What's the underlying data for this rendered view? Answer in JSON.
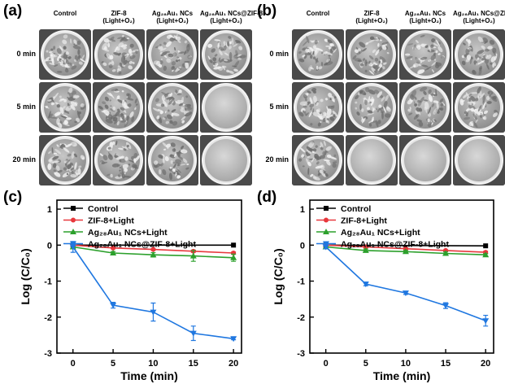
{
  "panels": {
    "a": {
      "letter": "(a)",
      "columns": [
        {
          "line1": "Control",
          "line2": ""
        },
        {
          "line1": "ZIF-8",
          "line2": "(Light+O₂)"
        },
        {
          "line1": "Ag₂₈Au₁ NCs",
          "line2": "(Light+O₂)"
        },
        {
          "line1": "Ag₂₈Au₁ NCs@ZIF-8",
          "line2": "(Light+O₂)"
        }
      ],
      "rows": [
        "0 min",
        "5 min",
        "20 min"
      ],
      "clear_plates": [
        [
          1,
          3
        ],
        [
          2,
          3
        ]
      ]
    },
    "b": {
      "letter": "(b)",
      "columns": [
        {
          "line1": "Control",
          "line2": ""
        },
        {
          "line1": "ZIF-8",
          "line2": "(Light+O₂)"
        },
        {
          "line1": "Ag₂₈Au₁ NCs",
          "line2": "(Light+O₂)"
        },
        {
          "line1": "Ag₂₈Au₁ NCs@ZI",
          "line2": "(Light+O₂)"
        }
      ],
      "rows": [
        "0 min",
        "5 min",
        "20 min"
      ],
      "clear_plates": [
        [
          2,
          1
        ],
        [
          2,
          2
        ],
        [
          2,
          3
        ]
      ]
    }
  },
  "chart_data": [
    {
      "panel": "(c)",
      "type": "line",
      "xlabel": "Time (min)",
      "ylabel": "Log (C/C₀)",
      "xlim": [
        -2,
        21
      ],
      "ylim": [
        -3,
        1.25
      ],
      "xticks": [
        0,
        5,
        10,
        15,
        20
      ],
      "yticks": [
        1,
        0,
        -1,
        -2,
        -3
      ],
      "legend_placement": "top-left",
      "series": [
        {
          "name": "Control",
          "color": "#000000",
          "marker": "square",
          "x": [
            0,
            20
          ],
          "y": [
            0,
            0
          ],
          "err": [
            0,
            0
          ]
        },
        {
          "name": "ZIF-8+Light",
          "color": "#e8383d",
          "marker": "circle",
          "x": [
            0,
            5,
            10,
            15,
            20
          ],
          "y": [
            0,
            -0.08,
            -0.12,
            -0.17,
            -0.22
          ],
          "err": [
            0.02,
            0.02,
            0.02,
            0.03,
            0.03
          ]
        },
        {
          "name": "Ag₂₈Au₁ NCs+Light",
          "color": "#2ca02c",
          "marker": "triangle-up",
          "x": [
            0,
            5,
            10,
            15,
            20
          ],
          "y": [
            -0.05,
            -0.22,
            -0.27,
            -0.3,
            -0.35
          ],
          "err": [
            0.05,
            0.04,
            0.06,
            0.15,
            0.1
          ]
        },
        {
          "name": "Ag₂₈Au₁ NCs@ZIF-8+Light",
          "color": "#1f77e0",
          "marker": "triangle-down",
          "x": [
            0,
            5,
            10,
            15,
            20
          ],
          "y": [
            -0.05,
            -1.67,
            -1.86,
            -2.45,
            -2.6
          ],
          "err": [
            0.15,
            0.08,
            0.25,
            0.2,
            0.03
          ]
        }
      ]
    },
    {
      "panel": "(d)",
      "type": "line",
      "xlabel": "Time (min)",
      "ylabel": "Log (C/C₀)",
      "xlim": [
        -2,
        21
      ],
      "ylim": [
        -3,
        1.25
      ],
      "xticks": [
        0,
        5,
        10,
        15,
        20
      ],
      "yticks": [
        1,
        0,
        -1,
        -2,
        -3
      ],
      "legend_placement": "top-left",
      "series": [
        {
          "name": "Control",
          "color": "#000000",
          "marker": "square",
          "x": [
            0,
            20
          ],
          "y": [
            0,
            -0.02
          ],
          "err": [
            0,
            0
          ]
        },
        {
          "name": "ZIF-8+Light",
          "color": "#e8383d",
          "marker": "circle",
          "x": [
            0,
            5,
            10,
            15,
            20
          ],
          "y": [
            0,
            -0.05,
            -0.1,
            -0.15,
            -0.2
          ],
          "err": [
            0.02,
            0.02,
            0.02,
            0.02,
            0.03
          ]
        },
        {
          "name": "Ag₂₈Au₁ NCs+Light",
          "color": "#2ca02c",
          "marker": "triangle-up",
          "x": [
            0,
            5,
            10,
            15,
            20
          ],
          "y": [
            -0.05,
            -0.15,
            -0.18,
            -0.23,
            -0.27
          ],
          "err": [
            0.04,
            0.04,
            0.03,
            0.04,
            0.03
          ]
        },
        {
          "name": "Ag₂₈Au₁ NCs@ZIF-8+Light",
          "color": "#1f77e0",
          "marker": "triangle-down",
          "x": [
            0,
            5,
            10,
            15,
            20
          ],
          "y": [
            -0.05,
            -1.08,
            -1.33,
            -1.68,
            -2.1
          ],
          "err": [
            0.05,
            0.05,
            0.04,
            0.08,
            0.15
          ]
        }
      ]
    }
  ]
}
